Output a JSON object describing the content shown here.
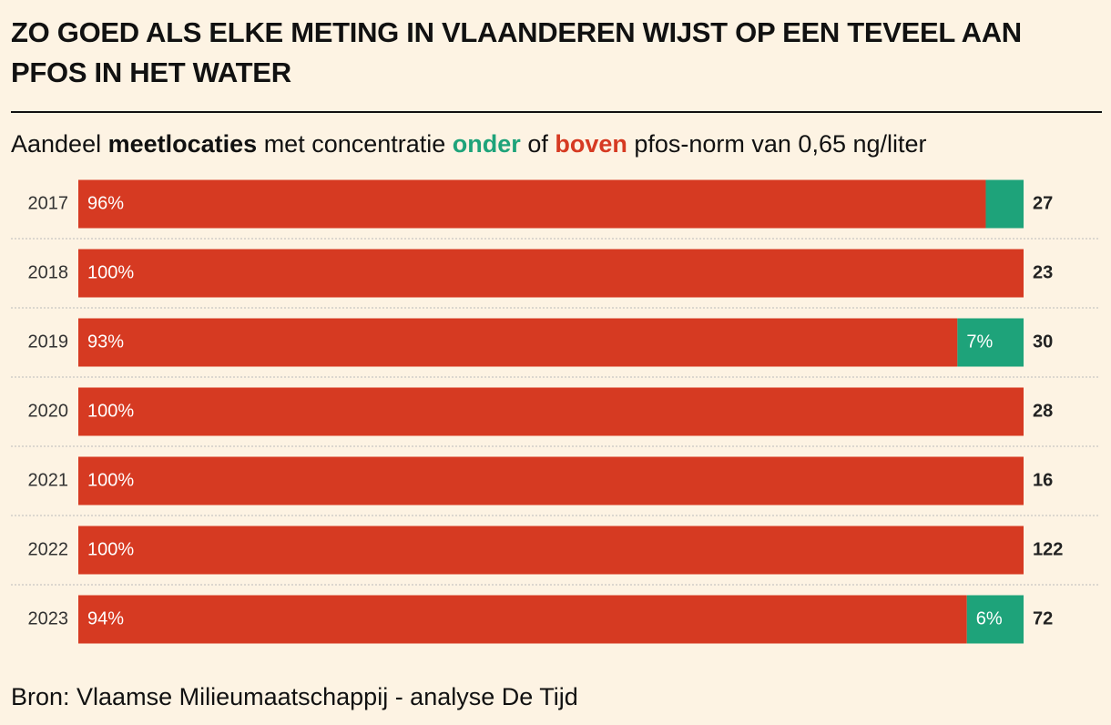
{
  "chart_data": {
    "type": "stacked-hbar",
    "title": "ZO GOED ALS ELKE METING IN VLAANDEREN WIJST OP EEN TEVEEL AAN PFOS IN HET WATER",
    "subtitle_parts": [
      "Aandeel ",
      "meetlocaties",
      " met concentratie ",
      " of ",
      " pfos-norm van 0,65 ng/liter"
    ],
    "categories": [
      "2017",
      "2018",
      "2019",
      "2020",
      "2021",
      "2022",
      "2023"
    ],
    "series": [
      {
        "name": "boven",
        "color": "#d63a22",
        "values": [
          96,
          100,
          93,
          100,
          100,
          100,
          94
        ],
        "value_labels": [
          "96%",
          "100%",
          "93%",
          "100%",
          "100%",
          "100%",
          "94%"
        ]
      },
      {
        "name": "onder",
        "color": "#1ea37a",
        "values": [
          4,
          0,
          7,
          0,
          0,
          0,
          6
        ],
        "value_labels": [
          null,
          null,
          "7%",
          null,
          null,
          null,
          "6%"
        ]
      }
    ],
    "sample_sizes": [
      27,
      23,
      30,
      28,
      16,
      122,
      72
    ],
    "xlim": [
      0,
      100
    ],
    "source": "Bron: Vlaamse Milieumaatschappij - analyse De Tijd"
  }
}
